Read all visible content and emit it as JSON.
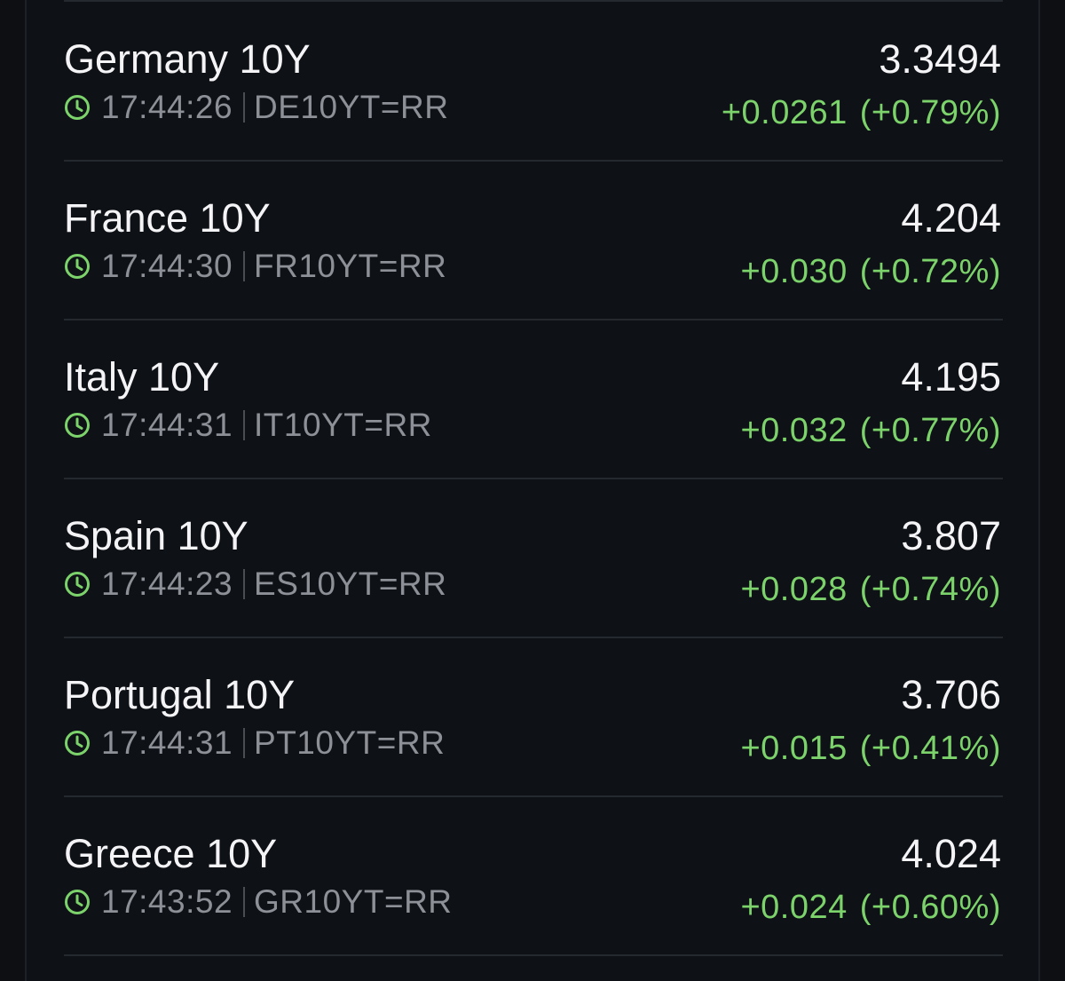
{
  "colors": {
    "background": "#0e1116",
    "text_primary": "#f4f4f6",
    "text_secondary": "#8e9097",
    "positive": "#7dd36b",
    "divider": "#24282f"
  },
  "quotes": [
    {
      "name": "Germany 10Y",
      "time": "17:44:26",
      "ric": "DE10YT=RR",
      "price": "3.3494",
      "change": "+0.0261",
      "change_pct": "(+0.79%)",
      "clock_icon": "clock-icon"
    },
    {
      "name": "France 10Y",
      "time": "17:44:30",
      "ric": "FR10YT=RR",
      "price": "4.204",
      "change": "+0.030",
      "change_pct": "(+0.72%)",
      "clock_icon": "clock-icon"
    },
    {
      "name": "Italy 10Y",
      "time": "17:44:31",
      "ric": "IT10YT=RR",
      "price": "4.195",
      "change": "+0.032",
      "change_pct": "(+0.77%)",
      "clock_icon": "clock-icon"
    },
    {
      "name": "Spain 10Y",
      "time": "17:44:23",
      "ric": "ES10YT=RR",
      "price": "3.807",
      "change": "+0.028",
      "change_pct": "(+0.74%)",
      "clock_icon": "clock-icon"
    },
    {
      "name": "Portugal 10Y",
      "time": "17:44:31",
      "ric": "PT10YT=RR",
      "price": "3.706",
      "change": "+0.015",
      "change_pct": "(+0.41%)",
      "clock_icon": "clock-icon"
    },
    {
      "name": "Greece 10Y",
      "time": "17:43:52",
      "ric": "GR10YT=RR",
      "price": "4.024",
      "change": "+0.024",
      "change_pct": "(+0.60%)",
      "clock_icon": "clock-icon"
    }
  ]
}
